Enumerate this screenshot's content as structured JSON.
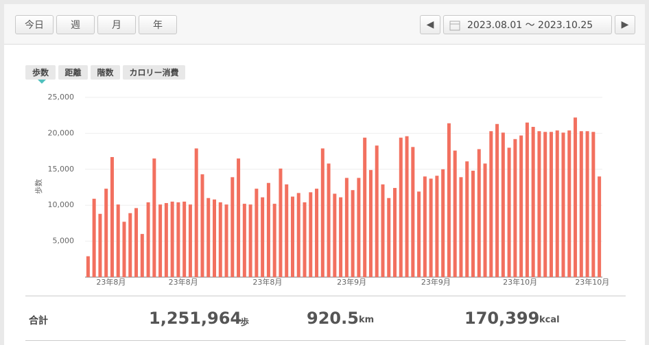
{
  "toolbar": {
    "periods": [
      "今日",
      "週",
      "月",
      "年"
    ],
    "active_period": 3,
    "date_range": "2023.08.01 ～ 2023.10.25"
  },
  "tabs": {
    "items": [
      "歩数",
      "距離",
      "階数",
      "カロリー消費"
    ],
    "active": 0
  },
  "chart_data": {
    "type": "bar",
    "y_label": "歩数",
    "color": "#f2705f",
    "grid": true,
    "ylim": [
      0,
      25000
    ],
    "yticks": [
      {
        "value": 5000,
        "label": "5,000"
      },
      {
        "value": 10000,
        "label": "10,000"
      },
      {
        "value": 15000,
        "label": "15,000"
      },
      {
        "value": 20000,
        "label": "20,000"
      },
      {
        "value": 25000,
        "label": "25,000"
      }
    ],
    "categories": [
      null,
      null,
      "23年8月",
      null,
      null,
      null,
      null,
      null,
      null,
      null,
      null,
      null,
      null,
      null,
      "23年8月",
      null,
      null,
      null,
      null,
      null,
      null,
      null,
      null,
      null,
      null,
      null,
      null,
      null,
      "23年8月",
      null,
      null,
      null,
      null,
      null,
      null,
      null,
      null,
      null,
      null,
      null,
      null,
      null,
      "23年9月",
      null,
      null,
      null,
      null,
      null,
      null,
      null,
      null,
      null,
      null,
      null,
      null,
      null,
      "23年9月",
      null,
      null,
      null,
      null,
      null,
      null,
      null,
      null,
      null,
      null,
      null,
      null,
      null,
      "23年10月",
      null,
      null,
      null,
      null,
      null,
      null,
      null,
      null,
      null,
      null,
      null,
      "23年10月",
      null,
      null,
      null
    ],
    "values": [
      2900,
      10900,
      8800,
      12300,
      16700,
      10100,
      7700,
      8900,
      9600,
      6000,
      10400,
      16500,
      10100,
      10300,
      10500,
      10400,
      10500,
      10100,
      17900,
      14300,
      11000,
      10800,
      10400,
      10100,
      13900,
      16500,
      10200,
      10100,
      12300,
      11100,
      13100,
      10200,
      15100,
      12900,
      11200,
      11700,
      10400,
      11800,
      12300,
      17900,
      15800,
      11600,
      11100,
      13800,
      12100,
      13800,
      19400,
      14900,
      18300,
      12900,
      11000,
      12400,
      19400,
      19600,
      18100,
      11900,
      14000,
      13700,
      14100,
      15000,
      21400,
      17600,
      13900,
      16100,
      14800,
      17800,
      15800,
      20300,
      21300,
      20100,
      18000,
      19200,
      19700,
      21500,
      20900,
      20300,
      20200,
      20200,
      20400,
      20100,
      20400,
      22200,
      20300,
      20300,
      20200,
      14000
    ]
  },
  "summary": {
    "label": "合計",
    "items": [
      {
        "value": "1,251,964",
        "unit": "歩"
      },
      {
        "value": "920.5",
        "unit": "km"
      },
      {
        "value": "170,399",
        "unit": "kcal"
      }
    ]
  }
}
